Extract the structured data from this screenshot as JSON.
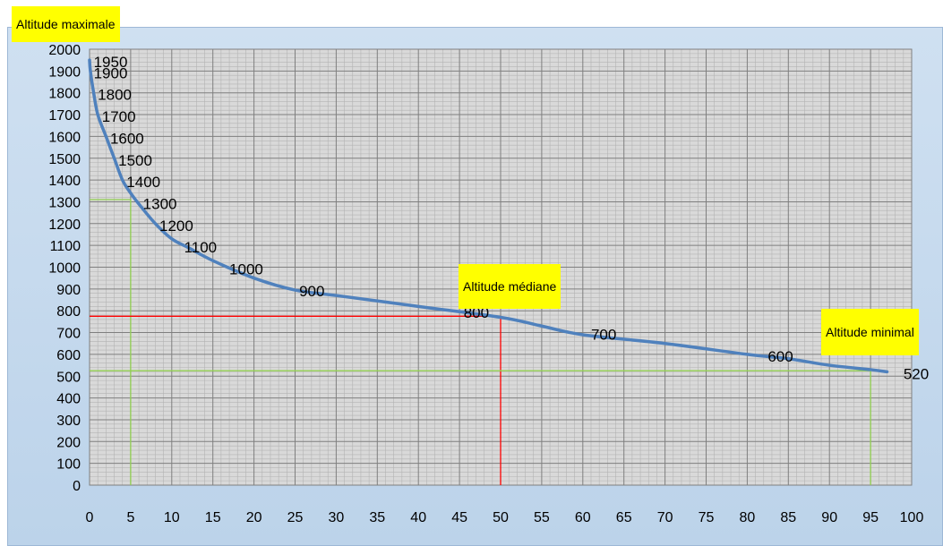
{
  "chart_data": {
    "type": "line",
    "x_ticks": [
      "0",
      "5",
      "10",
      "15",
      "20",
      "25",
      "30",
      "35",
      "40",
      "45",
      "50",
      "55",
      "60",
      "65",
      "70",
      "75",
      "80",
      "85",
      "90",
      "95",
      "100"
    ],
    "y_ticks": [
      "0",
      "100",
      "200",
      "300",
      "400",
      "500",
      "600",
      "700",
      "800",
      "900",
      "1000",
      "1100",
      "1200",
      "1300",
      "1400",
      "1500",
      "1600",
      "1700",
      "1800",
      "1900",
      "2000"
    ],
    "xlim": [
      0,
      100
    ],
    "ylim": [
      0,
      2000
    ],
    "grid": true,
    "series": [
      {
        "color": "#4f81bd",
        "x": [
          0,
          0.1,
          0.5,
          1,
          2,
          3,
          4,
          5,
          6,
          8,
          10,
          12,
          15,
          20,
          25,
          30,
          40,
          50,
          55,
          60,
          70,
          80,
          85,
          90,
          95,
          97
        ],
        "values": [
          1950,
          1900,
          1800,
          1700,
          1600,
          1500,
          1400,
          1340,
          1290,
          1200,
          1130,
          1090,
          1030,
          950,
          895,
          870,
          820,
          770,
          730,
          690,
          650,
          600,
          580,
          550,
          530,
          520
        ]
      }
    ],
    "point_labels": [
      {
        "text": "1950",
        "x": 0.5,
        "y": 1950
      },
      {
        "text": "1900",
        "x": 0.5,
        "y": 1900
      },
      {
        "text": "1800",
        "x": 1,
        "y": 1800
      },
      {
        "text": "1700",
        "x": 1.5,
        "y": 1700
      },
      {
        "text": "1600",
        "x": 2.5,
        "y": 1600
      },
      {
        "text": "1500",
        "x": 3.5,
        "y": 1500
      },
      {
        "text": "1400",
        "x": 4.5,
        "y": 1400
      },
      {
        "text": "1300",
        "x": 6.5,
        "y": 1300
      },
      {
        "text": "1200",
        "x": 8.5,
        "y": 1200
      },
      {
        "text": "1100",
        "x": 11.5,
        "y": 1100
      },
      {
        "text": "1000",
        "x": 17,
        "y": 1000
      },
      {
        "text": "900",
        "x": 25.5,
        "y": 900
      },
      {
        "text": "800",
        "x": 45.5,
        "y": 800
      },
      {
        "text": "700",
        "x": 61,
        "y": 700
      },
      {
        "text": "600",
        "x": 82.5,
        "y": 600
      },
      {
        "text": "520",
        "x": 99,
        "y": 520
      }
    ],
    "reference_lines": [
      {
        "color": "#92d050",
        "x": 5,
        "y": 1310
      },
      {
        "color": "#ff0000",
        "x": 50,
        "y": 775
      },
      {
        "color": "#92d050",
        "x": 95,
        "y": 525
      }
    ],
    "callouts": {
      "max": "Altitude maximale",
      "median": "Altitude médiane",
      "min": "Altitude minimal"
    }
  }
}
